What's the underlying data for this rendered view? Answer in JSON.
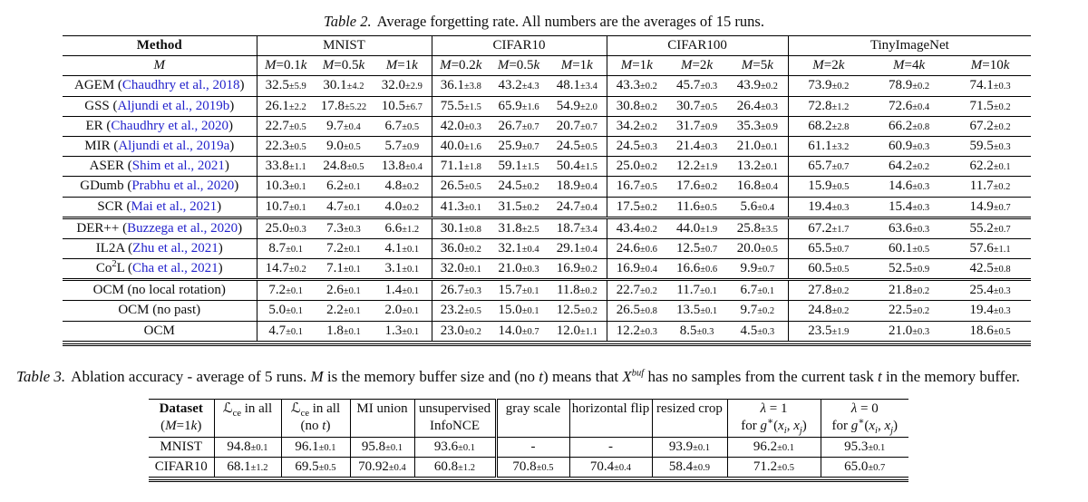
{
  "page": {
    "background": "#ffffff",
    "text_color": "#0e0e0e",
    "citation_color": "#2323cc"
  },
  "table2": {
    "caption_label": "Table 2.",
    "caption_text": "Average forgetting rate. All numbers are the averages of 15 runs.",
    "col_method": "Method",
    "col_m": "*M*",
    "groups": [
      {
        "label": "MNIST",
        "sizes": [
          "*M*=0.1*k*",
          "*M*=0.5*k*",
          "*M*=1*k*"
        ]
      },
      {
        "label": "CIFAR10",
        "sizes": [
          "*M*=0.2*k*",
          "*M*=0.5*k*",
          "*M*=1*k*"
        ]
      },
      {
        "label": "CIFAR100",
        "sizes": [
          "*M*=1*k*",
          "*M*=2*k*",
          "*M*=5*k*"
        ]
      },
      {
        "label": "TinyImageNet",
        "sizes": [
          "*M*=2*k*",
          "*M*=4*k*",
          "*M*=10*k*"
        ]
      }
    ],
    "rows": [
      {
        "method": "AGEM",
        "cite": "Chaudhry et al., 2018",
        "rule_above": false,
        "values": [
          "32.5±5.9",
          "30.1±4.2",
          "32.0±2.9",
          "36.1±3.8",
          "43.2±4.3",
          "48.1±3.4",
          "43.3±0.2",
          "45.7±0.3",
          "43.9±0.2",
          "73.9±0.2",
          "78.9±0.2",
          "74.1±0.3"
        ]
      },
      {
        "method": "GSS",
        "cite": "Aljundi et al., 2019b",
        "rule_above": false,
        "values": [
          "26.1±2.2",
          "17.8±5.22",
          "10.5±6.7",
          "75.5±1.5",
          "65.9±1.6",
          "54.9±2.0",
          "30.8±0.2",
          "30.7±0.5",
          "26.4±0.3",
          "72.8±1.2",
          "72.6±0.4",
          "71.5±0.2"
        ]
      },
      {
        "method": "ER",
        "cite": "Chaudhry et al., 2020",
        "rule_above": false,
        "values": [
          "22.7±0.5",
          "9.7±0.4",
          "6.7±0.5",
          "42.0±0.3",
          "26.7±0.7",
          "20.7±0.7",
          "34.2±0.2",
          "31.7±0.9",
          "35.3±0.9",
          "68.2±2.8",
          "66.2±0.8",
          "67.2±0.2"
        ]
      },
      {
        "method": "MIR",
        "cite": "Aljundi et al., 2019a",
        "rule_above": false,
        "values": [
          "22.3±0.5",
          "9.0±0.5",
          "5.7±0.9",
          "40.0±1.6",
          "25.9±0.7",
          "24.5±0.5",
          "24.5±0.3",
          "21.4±0.3",
          "21.0±0.1",
          "61.1±3.2",
          "60.9±0.3",
          "59.5±0.3"
        ]
      },
      {
        "method": "ASER",
        "cite": "Shim et al., 2021",
        "rule_above": false,
        "values": [
          "33.8±1.1",
          "24.8±0.5",
          "13.8±0.4",
          "71.1±1.8",
          "59.1±1.5",
          "50.4±1.5",
          "25.0±0.2",
          "12.2±1.9",
          "13.2±0.1",
          "65.7±0.7",
          "64.2±0.2",
          "62.2±0.1"
        ]
      },
      {
        "method": "GDumb",
        "cite": "Prabhu et al., 2020",
        "rule_above": false,
        "values": [
          "10.3±0.1",
          "6.2±0.1",
          "4.8±0.2",
          "26.5±0.5",
          "24.5±0.2",
          "18.9±0.4",
          "16.7±0.5",
          "17.6±0.2",
          "16.8±0.4",
          "15.9±0.5",
          "14.6±0.3",
          "11.7±0.2"
        ]
      },
      {
        "method": "SCR",
        "cite": "Mai et al., 2021",
        "rule_above": false,
        "values": [
          "10.7±0.1",
          "4.7±0.1",
          "4.0±0.2",
          "41.3±0.1",
          "31.5±0.2",
          "24.7±0.4",
          "17.5±0.2",
          "11.6±0.5",
          "5.6±0.4",
          "19.4±0.3",
          "15.4±0.3",
          "14.9±0.7"
        ]
      },
      {
        "method": "DER++",
        "cite": "Buzzega et al., 2020",
        "rule_above": true,
        "values": [
          "25.0±0.3",
          "7.3±0.3",
          "6.6±1.2",
          "30.1±0.8",
          "31.8±2.5",
          "18.7±3.4",
          "43.4±0.2",
          "44.0±1.9",
          "25.8±3.5",
          "67.2±1.7",
          "63.6±0.3",
          "55.2±0.7"
        ]
      },
      {
        "method": "IL2A",
        "cite": "Zhu et al., 2021",
        "rule_above": false,
        "values": [
          "8.7±0.1",
          "7.2±0.1",
          "4.1±0.1",
          "36.0±0.2",
          "32.1±0.4",
          "29.1±0.4",
          "24.6±0.6",
          "12.5±0.7",
          "20.0±0.5",
          "65.5±0.7",
          "60.1±0.5",
          "57.6±1.1"
        ]
      },
      {
        "method": "Co^{2}L",
        "cite": "Cha et al., 2021",
        "rule_above": false,
        "values": [
          "14.7±0.2",
          "7.1±0.1",
          "3.1±0.1",
          "32.0±0.1",
          "21.0±0.3",
          "16.9±0.2",
          "16.9±0.4",
          "16.6±0.6",
          "9.9±0.7",
          "60.5±0.5",
          "52.5±0.9",
          "42.5±0.8"
        ]
      },
      {
        "method": "OCM (no local rotation)",
        "cite": null,
        "rule_above": true,
        "values": [
          "7.2±0.1",
          "2.6±0.1",
          "1.4±0.1",
          "26.7±0.3",
          "15.7±0.1",
          "11.8±0.2",
          "22.7±0.2",
          "11.7±0.1",
          "6.7±0.1",
          "27.8±0.2",
          "21.8±0.2",
          "25.4±0.3"
        ]
      },
      {
        "method": "OCM (no past)",
        "cite": null,
        "rule_above": false,
        "values": [
          "5.0±0.1",
          "2.2±0.1",
          "2.0±0.1",
          "23.2±0.5",
          "15.0±0.1",
          "12.5±0.2",
          "26.5±0.8",
          "13.5±0.1",
          "9.7±0.2",
          "24.8±0.2",
          "22.5±0.2",
          "19.4±0.3"
        ]
      },
      {
        "method": "OCM",
        "cite": null,
        "rule_above": false,
        "values": [
          "4.7±0.1",
          "1.8±0.1",
          "1.3±0.1",
          "23.0±0.2",
          "14.0±0.7",
          "12.0±1.1",
          "12.2±0.3",
          "8.5±0.3",
          "4.5±0.3",
          "23.5±1.9",
          "21.0±0.3",
          "18.6±0.5"
        ]
      }
    ]
  },
  "table3": {
    "caption_label": "Table 3.",
    "caption_text": "Ablation accuracy - average of 5 runs. *M* is the memory buffer size and (no *t*) means that *X*^{*buf*} has no samples from the current task *t* in the memory buffer.",
    "columns": [
      {
        "line1": "Dataset",
        "line2": "(*M*=1*k*)",
        "bold1": true,
        "double_left": false
      },
      {
        "line1": "ℒ_{ce} in all",
        "line2": "",
        "bold1": false,
        "double_left": false
      },
      {
        "line1": "ℒ_{ce} in all",
        "line2": "(no *t*)",
        "bold1": false,
        "double_left": false
      },
      {
        "line1": "MI union",
        "line2": "",
        "bold1": false,
        "double_left": false
      },
      {
        "line1": "unsupervised",
        "line2": "InfoNCE",
        "bold1": false,
        "double_left": false
      },
      {
        "line1": "gray scale",
        "line2": "",
        "bold1": false,
        "double_left": true
      },
      {
        "line1": "horizontal flip",
        "line2": "",
        "bold1": false,
        "double_left": false
      },
      {
        "line1": "resized crop",
        "line2": "",
        "bold1": false,
        "double_left": false
      },
      {
        "line1": "*λ* = 1",
        "line2": "for *g*^{∗}(*x*_{*i*}, *x*_{*j*})",
        "bold1": false,
        "double_left": false
      },
      {
        "line1": "*λ* = 0",
        "line2": "for *g*^{∗}(*x*_{*i*}, *x*_{*j*})",
        "bold1": false,
        "double_left": false
      }
    ],
    "rows": [
      {
        "dataset": "MNIST",
        "values": [
          "94.8±0.1",
          "96.1±0.1",
          "95.8±0.1",
          "93.6±0.1",
          "-",
          "-",
          "93.9±0.1",
          "96.2±0.1",
          "95.3±0.1"
        ]
      },
      {
        "dataset": "CIFAR10",
        "values": [
          "68.1±1.2",
          "69.5±0.5",
          "70.92±0.4",
          "60.8±1.2",
          "70.8±0.5",
          "70.4±0.4",
          "58.4±0.9",
          "71.2±0.5",
          "65.0±0.7"
        ]
      }
    ]
  }
}
